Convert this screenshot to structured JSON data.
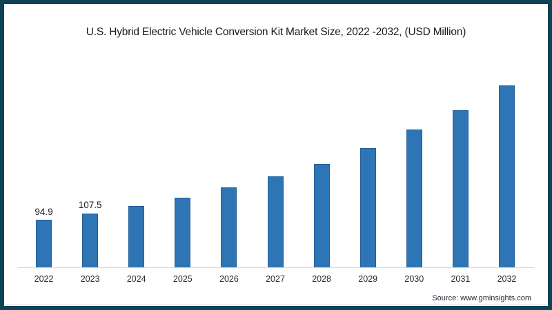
{
  "frame": {
    "border_color": "#0f4257",
    "background": "#ffffff"
  },
  "chart_data": {
    "type": "bar",
    "title": "U.S. Hybrid Electric Vehicle Conversion Kit Market Size, 2022 -2032, (USD Million)",
    "categories": [
      "2022",
      "2023",
      "2024",
      "2025",
      "2026",
      "2027",
      "2028",
      "2029",
      "2030",
      "2031",
      "2032"
    ],
    "values": [
      94.9,
      107.5,
      122,
      138,
      158,
      181,
      205,
      236,
      272,
      310,
      360
    ],
    "value_labels": [
      "94.9",
      "107.5",
      "",
      "",
      "",
      "",
      "",
      "",
      "",
      "",
      ""
    ],
    "bar_color": "#2e75b6",
    "axis_line_color": "#d9d9d9",
    "ylim": [
      0,
      400
    ],
    "grid": false,
    "legend": "none",
    "y_axis_shown": false,
    "estimation_note": "only the 2022 and 2023 bars display data labels; 2024-2032 values estimated from bar heights"
  },
  "source": {
    "text": "Source: www.gminsights.com"
  }
}
